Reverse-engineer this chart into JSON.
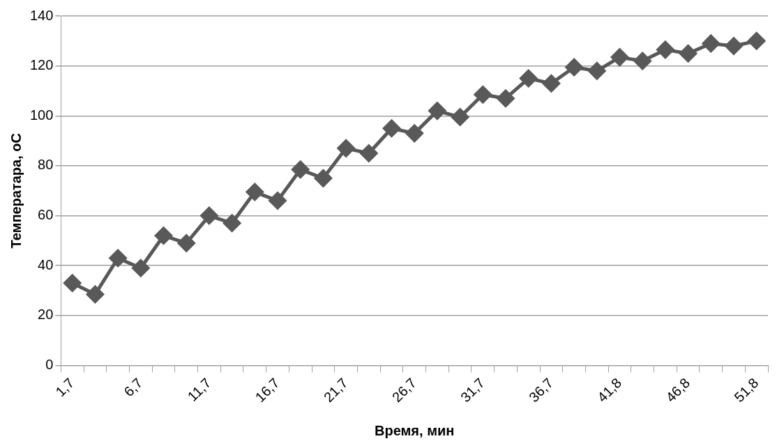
{
  "chart_data": {
    "type": "line",
    "xlabel": "Время, мин",
    "ylabel": "Температара, оС",
    "categories": [
      "1,7",
      null,
      null,
      "6,7",
      null,
      null,
      "11,7",
      null,
      null,
      "16,7",
      null,
      null,
      "21,7",
      null,
      null,
      "26,7",
      null,
      null,
      "31,7",
      null,
      null,
      "36,7",
      null,
      null,
      "41,8",
      null,
      null,
      "46,8",
      null,
      null,
      "51,8"
    ],
    "series": [
      {
        "color": "#595959",
        "values": [
          33,
          28.5,
          43,
          39,
          52,
          49,
          60,
          57,
          69.5,
          66,
          78.5,
          75,
          87,
          85,
          95,
          93,
          102,
          99.5,
          108.5,
          107,
          115,
          113,
          119.5,
          118,
          123.5,
          122,
          126.5,
          125,
          129,
          128,
          130
        ]
      }
    ],
    "ylim": [
      0,
      140
    ],
    "yticks": [
      0,
      20,
      40,
      60,
      80,
      100,
      120,
      140
    ],
    "grid": "y",
    "legend": false,
    "marker": "diamond",
    "line_style": "solid"
  }
}
